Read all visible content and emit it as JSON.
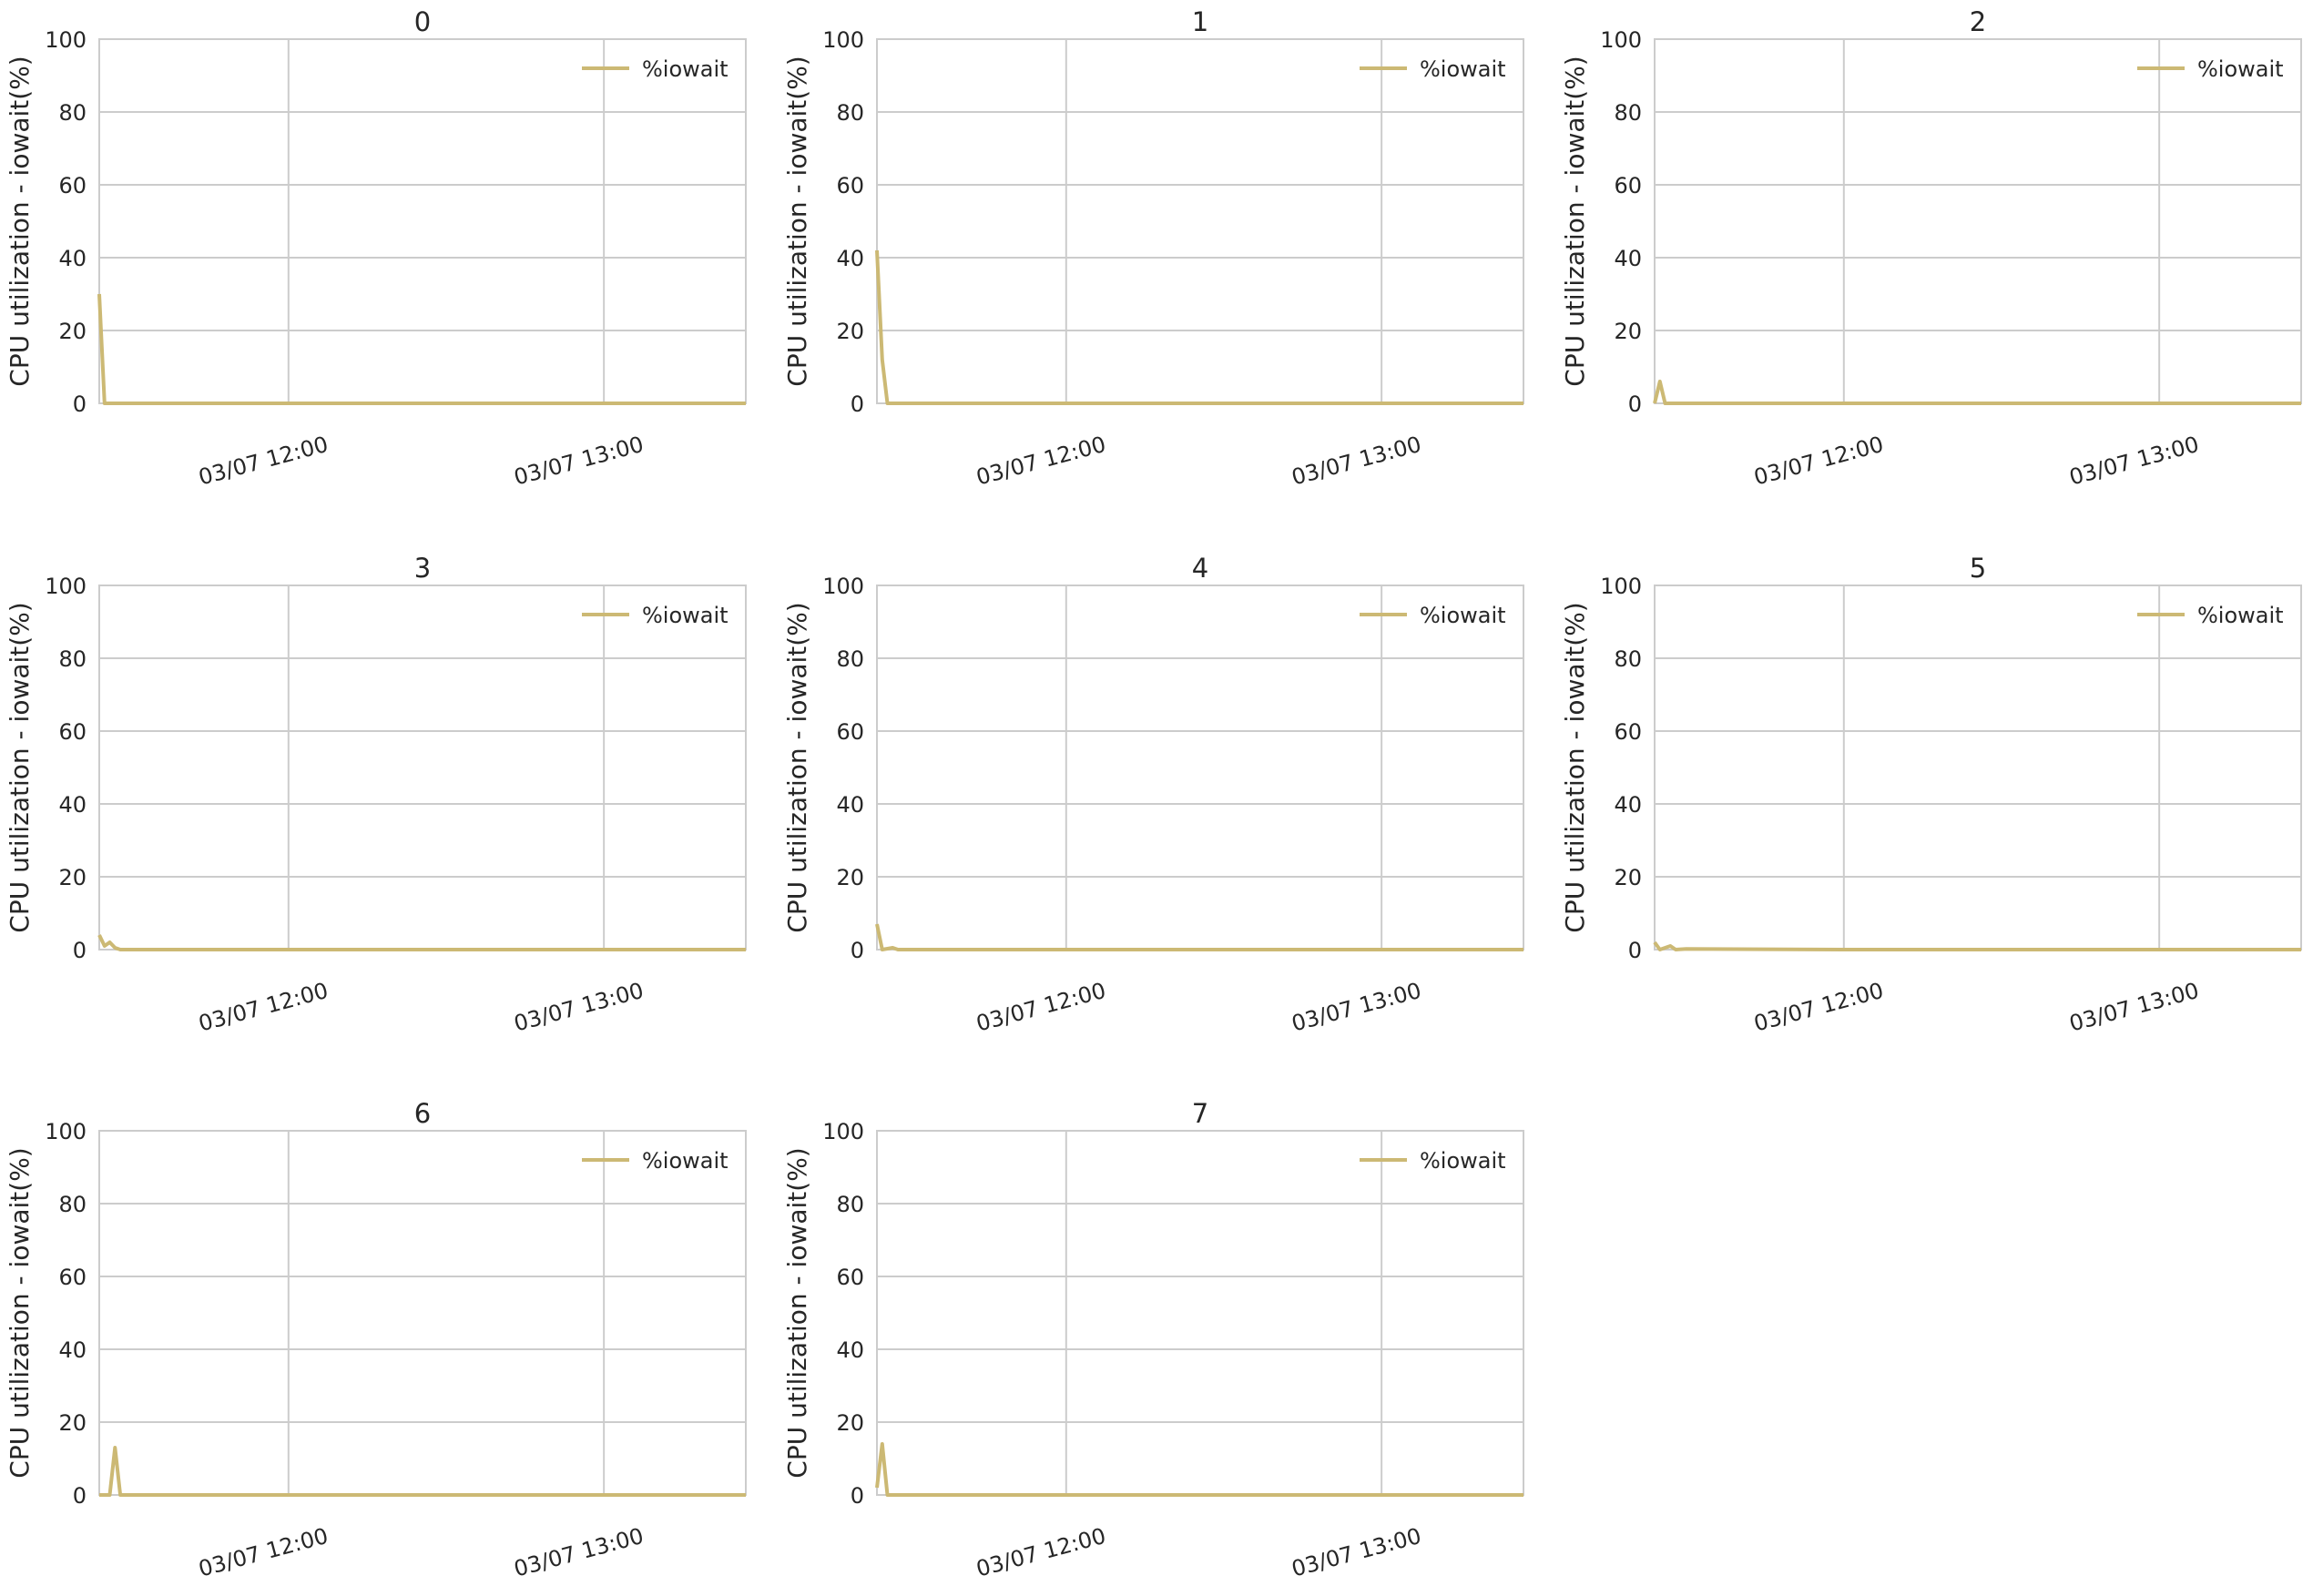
{
  "figure": {
    "background": "#ffffff",
    "grid_color": "#cccccc",
    "line_color": "#ccb974"
  },
  "chart_data": [
    {
      "type": "line",
      "title": "0",
      "ylabel": "CPU utilization - iowait(%)",
      "ylim": [
        0,
        100
      ],
      "yticks": [
        "0",
        "20",
        "40",
        "60",
        "80",
        "100"
      ],
      "xlim": [
        "03/07 11:24",
        "03/07 13:27"
      ],
      "xticks": [
        {
          "label": "03/07 12:00",
          "x": "03/07 12:00"
        },
        {
          "label": "03/07 13:00",
          "x": "03/07 13:00"
        }
      ],
      "grid": true,
      "legend": "top-right",
      "series": [
        {
          "name": "%iowait",
          "color": "#ccb974",
          "x": [
            "03/07 11:24",
            "03/07 11:25",
            "03/07 11:26",
            "03/07 11:28",
            "03/07 12:00",
            "03/07 13:00",
            "03/07 13:27"
          ],
          "values": [
            30,
            0,
            0,
            0,
            0,
            0,
            0
          ]
        }
      ]
    },
    {
      "type": "line",
      "title": "1",
      "ylabel": "CPU utilization - iowait(%)",
      "ylim": [
        0,
        100
      ],
      "yticks": [
        "0",
        "20",
        "40",
        "60",
        "80",
        "100"
      ],
      "xlim": [
        "03/07 11:24",
        "03/07 13:27"
      ],
      "xticks": [
        {
          "label": "03/07 12:00",
          "x": "03/07 12:00"
        },
        {
          "label": "03/07 13:00",
          "x": "03/07 13:00"
        }
      ],
      "grid": true,
      "legend": "top-right",
      "series": [
        {
          "name": "%iowait",
          "color": "#ccb974",
          "x": [
            "03/07 11:24",
            "03/07 11:25",
            "03/07 11:26",
            "03/07 11:28",
            "03/07 12:00",
            "03/07 13:00",
            "03/07 13:27"
          ],
          "values": [
            42,
            12,
            0,
            0,
            0,
            0,
            0
          ]
        }
      ]
    },
    {
      "type": "line",
      "title": "2",
      "ylabel": "CPU utilization - iowait(%)",
      "ylim": [
        0,
        100
      ],
      "yticks": [
        "0",
        "20",
        "40",
        "60",
        "80",
        "100"
      ],
      "xlim": [
        "03/07 11:24",
        "03/07 13:27"
      ],
      "xticks": [
        {
          "label": "03/07 12:00",
          "x": "03/07 12:00"
        },
        {
          "label": "03/07 13:00",
          "x": "03/07 13:00"
        }
      ],
      "grid": true,
      "legend": "top-right",
      "series": [
        {
          "name": "%iowait",
          "color": "#ccb974",
          "x": [
            "03/07 11:24",
            "03/07 11:25",
            "03/07 11:26",
            "03/07 11:28",
            "03/07 12:00",
            "03/07 13:00",
            "03/07 13:27"
          ],
          "values": [
            0,
            6,
            0,
            0,
            0,
            0,
            0
          ]
        }
      ]
    },
    {
      "type": "line",
      "title": "3",
      "ylabel": "CPU utilization - iowait(%)",
      "ylim": [
        0,
        100
      ],
      "yticks": [
        "0",
        "20",
        "40",
        "60",
        "80",
        "100"
      ],
      "xlim": [
        "03/07 11:24",
        "03/07 13:27"
      ],
      "xticks": [
        {
          "label": "03/07 12:00",
          "x": "03/07 12:00"
        },
        {
          "label": "03/07 13:00",
          "x": "03/07 13:00"
        }
      ],
      "grid": true,
      "legend": "top-right",
      "series": [
        {
          "name": "%iowait",
          "color": "#ccb974",
          "x": [
            "03/07 11:24",
            "03/07 11:25",
            "03/07 11:26",
            "03/07 11:27",
            "03/07 11:28",
            "03/07 12:00",
            "03/07 13:00",
            "03/07 13:27"
          ],
          "values": [
            4,
            1,
            2,
            0.5,
            0,
            0,
            0,
            0
          ]
        }
      ]
    },
    {
      "type": "line",
      "title": "4",
      "ylabel": "CPU utilization - iowait(%)",
      "ylim": [
        0,
        100
      ],
      "yticks": [
        "0",
        "20",
        "40",
        "60",
        "80",
        "100"
      ],
      "xlim": [
        "03/07 11:24",
        "03/07 13:27"
      ],
      "xticks": [
        {
          "label": "03/07 12:00",
          "x": "03/07 12:00"
        },
        {
          "label": "03/07 13:00",
          "x": "03/07 13:00"
        }
      ],
      "grid": true,
      "legend": "top-right",
      "series": [
        {
          "name": "%iowait",
          "color": "#ccb974",
          "x": [
            "03/07 11:24",
            "03/07 11:25",
            "03/07 11:27",
            "03/07 11:28",
            "03/07 12:00",
            "03/07 13:00",
            "03/07 13:27"
          ],
          "values": [
            7,
            0,
            0.5,
            0,
            0,
            0,
            0
          ]
        }
      ]
    },
    {
      "type": "line",
      "title": "5",
      "ylabel": "CPU utilization - iowait(%)",
      "ylim": [
        0,
        100
      ],
      "yticks": [
        "0",
        "20",
        "40",
        "60",
        "80",
        "100"
      ],
      "xlim": [
        "03/07 11:24",
        "03/07 13:27"
      ],
      "xticks": [
        {
          "label": "03/07 12:00",
          "x": "03/07 12:00"
        },
        {
          "label": "03/07 13:00",
          "x": "03/07 13:00"
        }
      ],
      "grid": true,
      "legend": "top-right",
      "series": [
        {
          "name": "%iowait",
          "color": "#ccb974",
          "x": [
            "03/07 11:24",
            "03/07 11:25",
            "03/07 11:27",
            "03/07 11:28",
            "03/07 11:30",
            "03/07 12:00",
            "03/07 13:00",
            "03/07 13:27"
          ],
          "values": [
            2,
            0,
            1,
            0,
            0.2,
            0,
            0,
            0
          ]
        }
      ]
    },
    {
      "type": "line",
      "title": "6",
      "ylabel": "CPU utilization - iowait(%)",
      "ylim": [
        0,
        100
      ],
      "yticks": [
        "0",
        "20",
        "40",
        "60",
        "80",
        "100"
      ],
      "xlim": [
        "03/07 11:24",
        "03/07 13:27"
      ],
      "xticks": [
        {
          "label": "03/07 12:00",
          "x": "03/07 12:00"
        },
        {
          "label": "03/07 13:00",
          "x": "03/07 13:00"
        }
      ],
      "grid": true,
      "legend": "top-right",
      "series": [
        {
          "name": "%iowait",
          "color": "#ccb974",
          "x": [
            "03/07 11:24",
            "03/07 11:26",
            "03/07 11:27",
            "03/07 11:28",
            "03/07 12:00",
            "03/07 13:00",
            "03/07 13:27"
          ],
          "values": [
            0,
            0,
            13,
            0,
            0,
            0,
            0
          ]
        }
      ]
    },
    {
      "type": "line",
      "title": "7",
      "ylabel": "CPU utilization - iowait(%)",
      "ylim": [
        0,
        100
      ],
      "yticks": [
        "0",
        "20",
        "40",
        "60",
        "80",
        "100"
      ],
      "xlim": [
        "03/07 11:24",
        "03/07 13:27"
      ],
      "xticks": [
        {
          "label": "03/07 12:00",
          "x": "03/07 12:00"
        },
        {
          "label": "03/07 13:00",
          "x": "03/07 13:00"
        }
      ],
      "grid": true,
      "legend": "top-right",
      "series": [
        {
          "name": "%iowait",
          "color": "#ccb974",
          "x": [
            "03/07 11:24",
            "03/07 11:25",
            "03/07 11:26",
            "03/07 11:28",
            "03/07 12:00",
            "03/07 13:00",
            "03/07 13:27"
          ],
          "values": [
            2,
            14,
            0,
            0,
            0,
            0,
            0
          ]
        }
      ]
    }
  ]
}
